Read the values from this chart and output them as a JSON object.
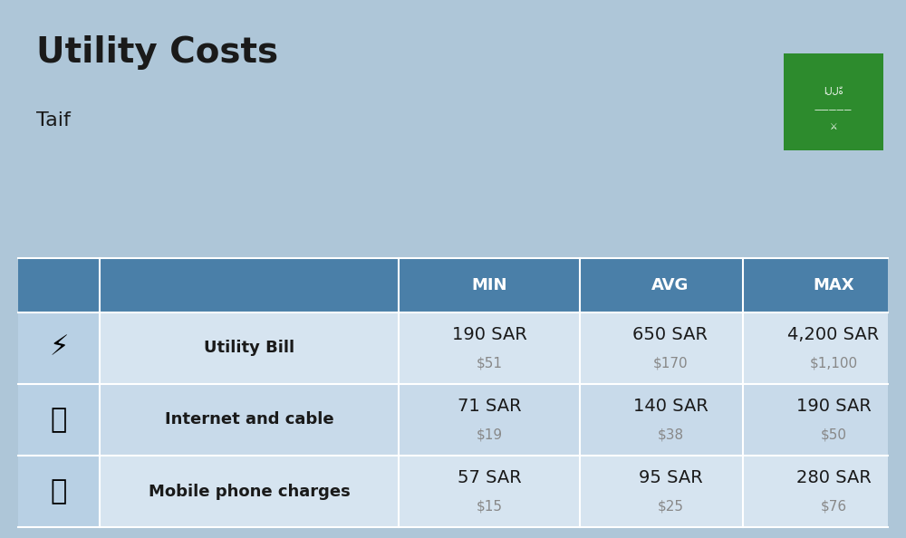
{
  "title": "Utility Costs",
  "subtitle": "Taif",
  "background_color": "#aec6d8",
  "header_bg_color": "#4a7fa8",
  "header_text_color": "#ffffff",
  "row_colors": [
    "#d6e4f0",
    "#c8daea"
  ],
  "icon_col_color": "#b8d0e4",
  "col_headers": [
    "MIN",
    "AVG",
    "MAX"
  ],
  "rows": [
    {
      "label": "Utility Bill",
      "min_sar": "190 SAR",
      "min_usd": "$51",
      "avg_sar": "650 SAR",
      "avg_usd": "$170",
      "max_sar": "4,200 SAR",
      "max_usd": "$1,100"
    },
    {
      "label": "Internet and cable",
      "min_sar": "71 SAR",
      "min_usd": "$19",
      "avg_sar": "140 SAR",
      "avg_usd": "$38",
      "max_sar": "190 SAR",
      "max_usd": "$50"
    },
    {
      "label": "Mobile phone charges",
      "min_sar": "57 SAR",
      "min_usd": "$15",
      "avg_sar": "95 SAR",
      "avg_usd": "$25",
      "max_sar": "280 SAR",
      "max_usd": "$76"
    }
  ],
  "flag_color": "#2d8b2d",
  "title_fontsize": 28,
  "subtitle_fontsize": 16,
  "header_fontsize": 13,
  "label_fontsize": 13,
  "value_fontsize": 14,
  "usd_fontsize": 11,
  "usd_color": "#888888"
}
